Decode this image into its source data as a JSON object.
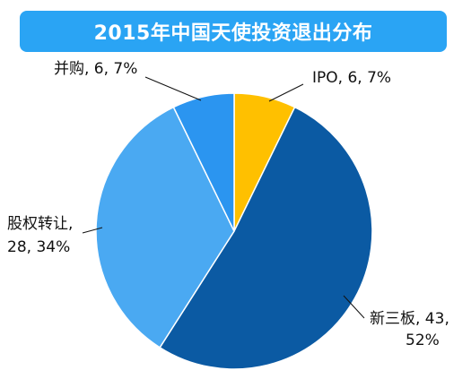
{
  "colors": {
    "title_bg": "#2aa4f4",
    "title_text": "#ffffff",
    "leader_line": "#111111"
  },
  "chart_data": {
    "type": "pie",
    "title": "2015年中国天使投资退出分布",
    "slices": [
      {
        "name": "IPO",
        "value": 6,
        "percent": "7%",
        "color": "#ffc000",
        "label_lines": [
          "IPO, 6, 7%"
        ]
      },
      {
        "name": "新三板",
        "value": 43,
        "percent": "52%",
        "color": "#0b5aa3",
        "label_lines": [
          "新三板, 43,",
          "52%"
        ]
      },
      {
        "name": "股权转让",
        "value": 28,
        "percent": "34%",
        "color": "#4aa9f2",
        "label_lines": [
          "股权转让,",
          "28, 34%"
        ]
      },
      {
        "name": "并购",
        "value": 6,
        "percent": "7%",
        "color": "#2b95f0",
        "label_lines": [
          "并购, 6, 7%"
        ]
      }
    ]
  }
}
